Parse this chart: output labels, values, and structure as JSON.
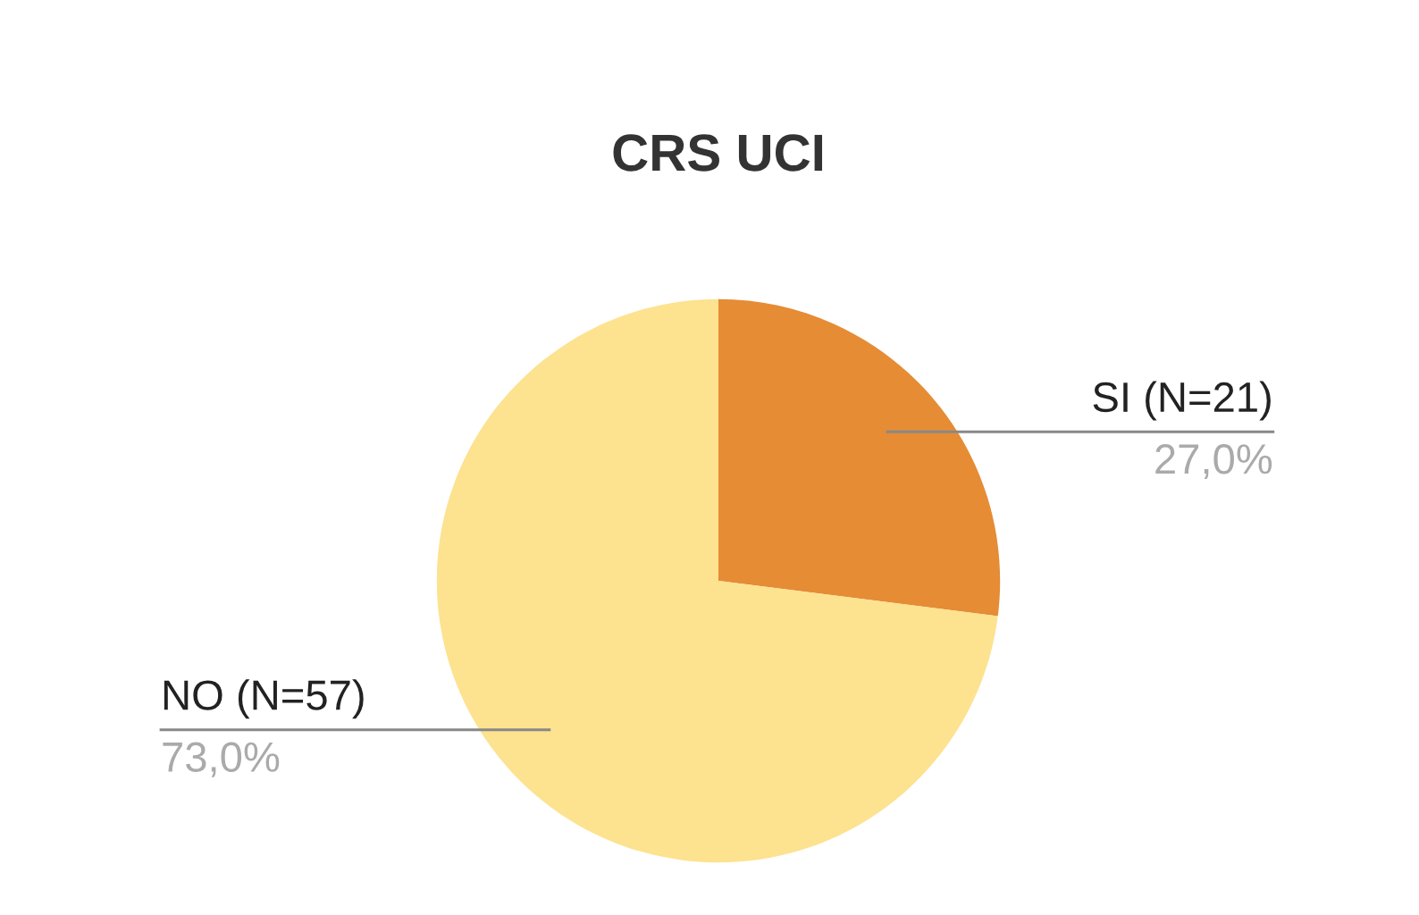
{
  "chart_data": {
    "type": "pie",
    "title": "CRS UCI",
    "categories": [
      "SI (N=21)",
      "NO (N=57)"
    ],
    "values": [
      27.0,
      73.0
    ],
    "value_labels": [
      "27,0%",
      "73,0%"
    ],
    "colors": [
      "#e58c35",
      "#fde28f"
    ],
    "legend": false
  }
}
